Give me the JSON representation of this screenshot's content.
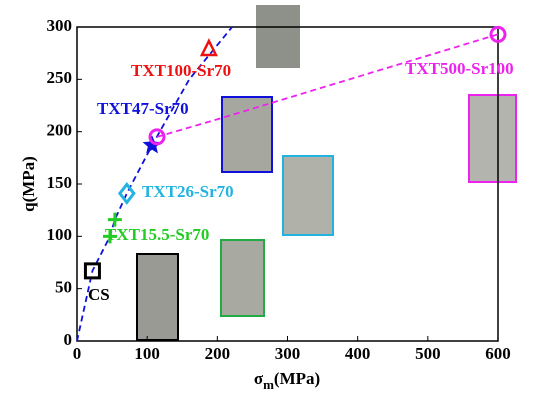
{
  "chart_data": {
    "type": "scatter",
    "x_label": {
      "symbol": "σ",
      "sub": "m",
      "unit": "(MPa)"
    },
    "y_label": "q(MPa)",
    "xlim": [
      0,
      600
    ],
    "xticks": [
      0,
      100,
      200,
      300,
      400,
      500,
      600
    ],
    "ylim": [
      0,
      300
    ],
    "yticks": [
      0,
      50,
      100,
      150,
      200,
      250,
      300
    ],
    "series": [
      {
        "name": "CS",
        "color": "#000000",
        "marker": "square",
        "x": [
          22
        ],
        "values": [
          67
        ]
      },
      {
        "name": "TXT15.5-Sr70",
        "color": "#22cc22",
        "marker": "plus",
        "x": [
          54,
          47
        ],
        "values": [
          116,
          100
        ]
      },
      {
        "name": "TXT26-Sr70",
        "color": "#22b4e0",
        "marker": "diamond",
        "x": [
          71
        ],
        "values": [
          141
        ]
      },
      {
        "name": "TXT47-Sr70",
        "color": "#1010dd",
        "marker": "star",
        "x": [
          107
        ],
        "values": [
          187
        ]
      },
      {
        "name": "TXT100-Sr70",
        "color": "#ee1111",
        "marker": "triangle",
        "x": [
          188
        ],
        "values": [
          279
        ]
      },
      {
        "name": "TXT500-Sr100",
        "color": "#ee22ee",
        "marker": "circle",
        "x": [
          114,
          600
        ],
        "values": [
          195,
          293
        ]
      }
    ],
    "lines": [
      {
        "color": "#1010dd",
        "x": [
          0,
          22,
          47,
          54,
          71,
          107,
          160,
          221
        ],
        "values": [
          0,
          67,
          100,
          116,
          141,
          187,
          250,
          300
        ]
      },
      {
        "color": "#ee22ee",
        "x": [
          114,
          206,
          600
        ],
        "values": [
          195,
          213,
          293
        ]
      }
    ]
  }
}
